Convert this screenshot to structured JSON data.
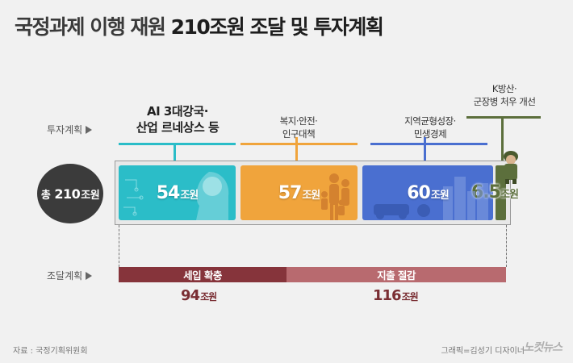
{
  "title": {
    "part1": "국정과제 이행 재원 ",
    "part2": "210조원 조달 및 투자계획"
  },
  "row_labels": {
    "investment": "투자계획",
    "funding": "조달계획"
  },
  "total": {
    "prefix": "총",
    "value": "210",
    "unit": "조원"
  },
  "investment": [
    {
      "label": "AI 3대강국·\n산업 르네상스 등",
      "value": "54",
      "unit": "조원",
      "color": "#2bbdc8"
    },
    {
      "label": "복지·안전·\n인구대책",
      "value": "57",
      "unit": "조원",
      "color": "#f0a43c"
    },
    {
      "label": "지역균형성장·\n민생경제",
      "value": "60",
      "unit": "조원",
      "color": "#4a6fd0"
    },
    {
      "label": "K방산·\n군장병 처우 개선",
      "value": "6.5",
      "unit": "조원",
      "color": "#5c6f3c"
    }
  ],
  "funding": [
    {
      "label": "세입 확충",
      "value": "94",
      "unit": "조원",
      "color": "#86343b"
    },
    {
      "label": "지출 절감",
      "value": "116",
      "unit": "조원",
      "color": "#b86a6f"
    }
  ],
  "footer": {
    "source": "자료 : 국정기획위원회",
    "credit": "그래픽=김성기 디자이너",
    "logo": "노컷뉴스"
  }
}
